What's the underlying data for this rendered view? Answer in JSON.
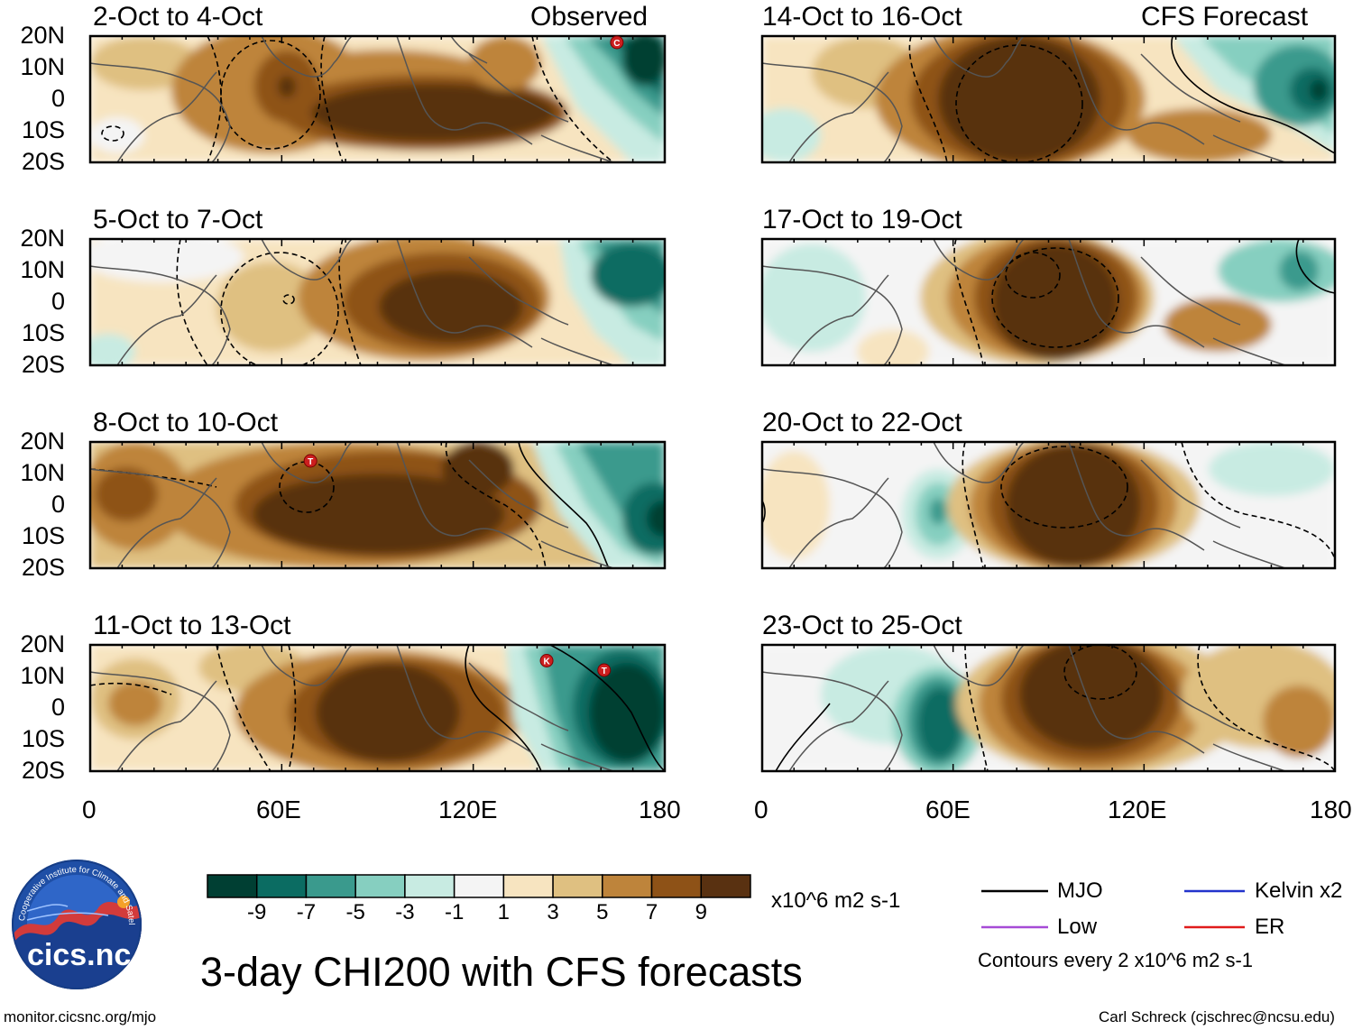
{
  "title": "3-day CHI200 with CFS forecasts",
  "colorbar": {
    "unit": "x10^6 m2 s-1",
    "ticks": [
      "-9",
      "-7",
      "-5",
      "-3",
      "-1",
      "1",
      "3",
      "5",
      "7",
      "9"
    ],
    "colors": [
      "#003f33",
      "#0b6c62",
      "#3a9a8d",
      "#86cfc0",
      "#c8ebe2",
      "#f4f4f4",
      "#f7e4c0",
      "#dfc081",
      "#be843b",
      "#8e5217",
      "#593111"
    ]
  },
  "lat_labels": [
    "20N",
    "10N",
    "0",
    "10S",
    "20S"
  ],
  "lon_labels": [
    "0",
    "60E",
    "120E",
    "180"
  ],
  "observed_label": "Observed",
  "forecast_label": "CFS Forecast",
  "panels": [
    {
      "title": "2-Oct to 4-Oct",
      "column": "left",
      "kind": "observed"
    },
    {
      "title": "5-Oct to 7-Oct",
      "column": "left",
      "kind": "observed"
    },
    {
      "title": "8-Oct to 10-Oct",
      "column": "left",
      "kind": "observed"
    },
    {
      "title": "11-Oct to 13-Oct",
      "column": "left",
      "kind": "observed"
    },
    {
      "title": "14-Oct to 16-Oct",
      "column": "right",
      "kind": "forecast"
    },
    {
      "title": "17-Oct to 19-Oct",
      "column": "right",
      "kind": "forecast"
    },
    {
      "title": "20-Oct to 22-Oct",
      "column": "right",
      "kind": "forecast"
    },
    {
      "title": "23-Oct to 25-Oct",
      "column": "right",
      "kind": "forecast"
    }
  ],
  "storm_markers": [
    {
      "panel": 0,
      "letter": "C",
      "lon": 165,
      "lat": 18
    },
    {
      "panel": 2,
      "letter": "T",
      "lon": 69,
      "lat": 14
    },
    {
      "panel": 3,
      "letter": "K",
      "lon": 143,
      "lat": 15
    },
    {
      "panel": 3,
      "letter": "T",
      "lon": 161,
      "lat": 12
    }
  ],
  "legend": {
    "items": [
      {
        "label": "MJO",
        "color": "#000000"
      },
      {
        "label": "Kelvin x2",
        "color": "#2233cc"
      },
      {
        "label": "Low",
        "color": "#a64bd6"
      },
      {
        "label": "ER",
        "color": "#e01b1b"
      }
    ],
    "note": "Contours every 2 x10^6 m2 s-1"
  },
  "logo": {
    "text": "cics.nc",
    "ring": "Cooperative Institute for Climate and Satellites"
  },
  "footer": {
    "left": "monitor.cicsnc.org/mjo",
    "right": "Carl Schreck (cjschrec@ncsu.edu)"
  }
}
